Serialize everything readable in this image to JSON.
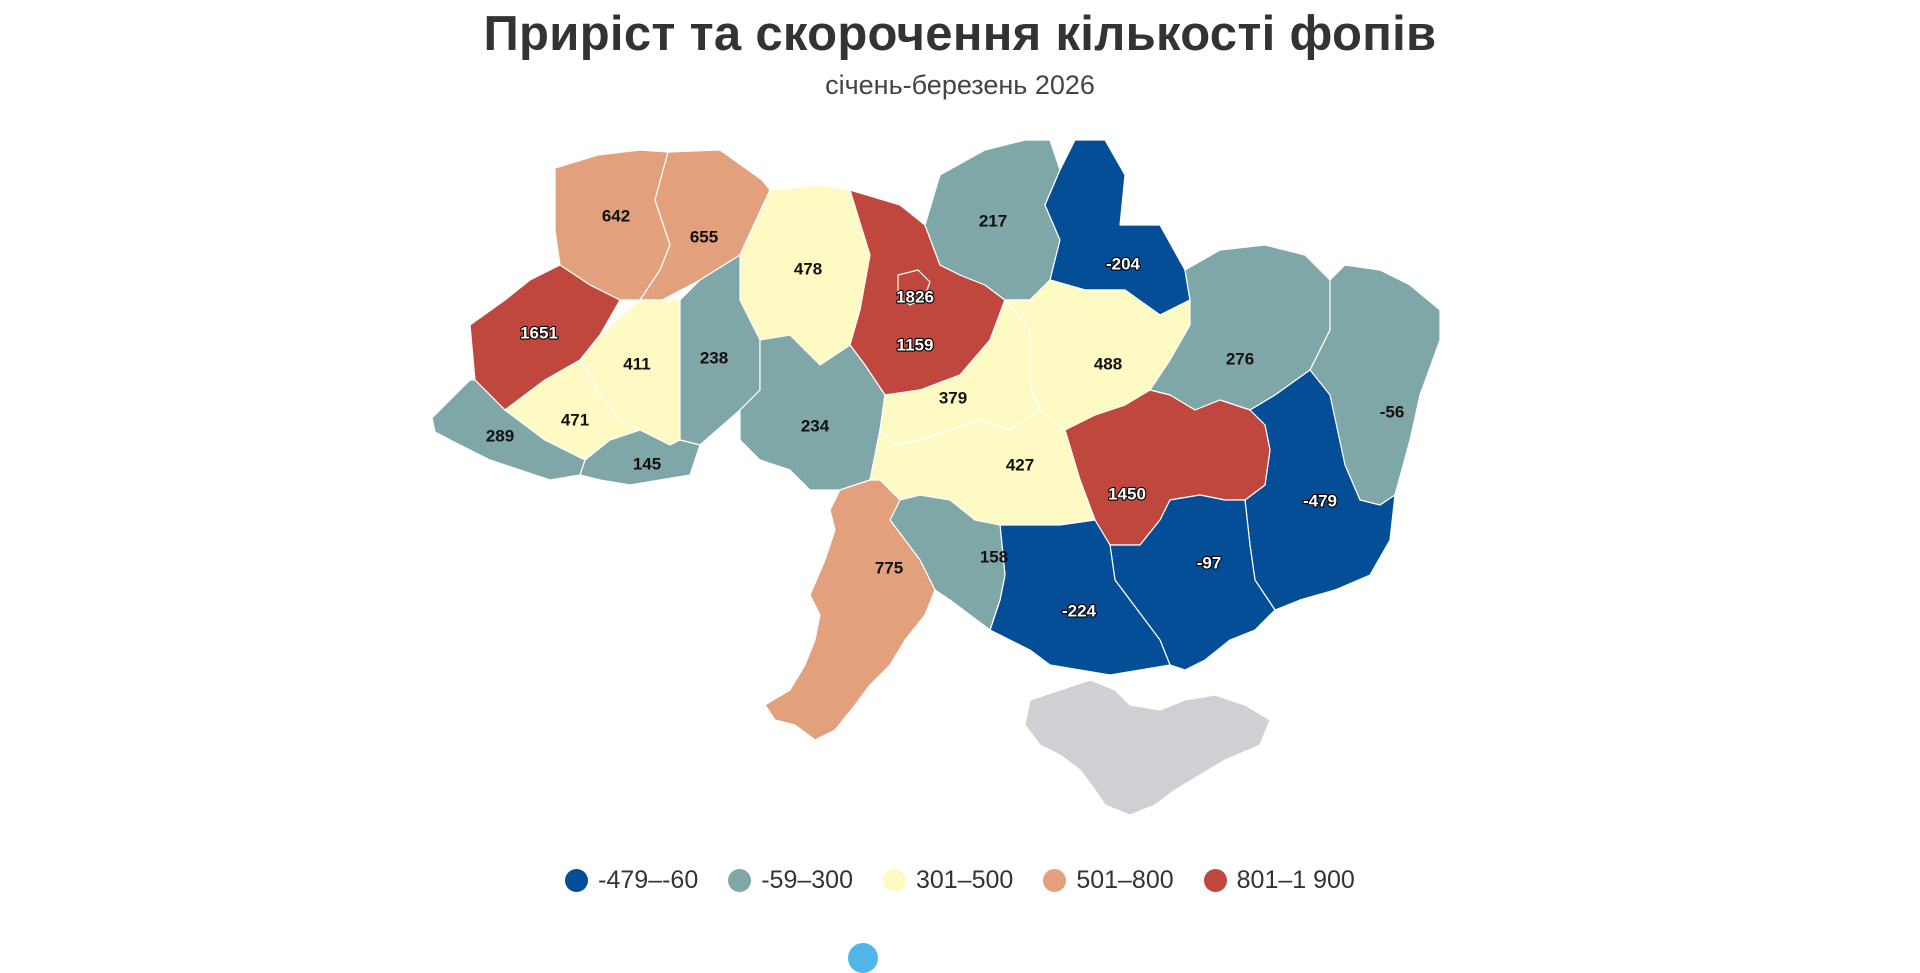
{
  "title": "Приріст та скорочення кількості фопів",
  "subtitle": "січень-березень 2026",
  "colors": {
    "c1": "#034e97",
    "c2": "#7fa7a8",
    "c3": "#fdfbc3",
    "c4": "#e2a07c",
    "c5": "#c0473d",
    "crimea": "#cfcfd4"
  },
  "legend": [
    {
      "label": "-479–-60",
      "color": "#034e97"
    },
    {
      "label": "-59–300",
      "color": "#7fa7a8"
    },
    {
      "label": "301–500",
      "color": "#fdfbc3"
    },
    {
      "label": "501–800",
      "color": "#e2a07c"
    },
    {
      "label": "801–1 900",
      "color": "#c0473d"
    }
  ],
  "values": {
    "volyn": "642",
    "rivne": "655",
    "zhytomyr": "478",
    "kyiv_oblast": "1159",
    "kyiv_city": "1826",
    "chernihiv": "217",
    "sumy": "-204",
    "lviv": "1651",
    "ternopil": "411",
    "khmelnytskyi": "238",
    "vinnytsia": "234",
    "cherkasy": "379",
    "poltava": "488",
    "kharkiv": "276",
    "luhansk": "-56",
    "donetsk": "-479",
    "dnipro": "1450",
    "kirovohrad": "427",
    "zaporizhzhia": "-97",
    "kherson": "-224",
    "mykolaiv": "158",
    "odesa": "775",
    "zakarpattia": "289",
    "ivano_frankivsk": "471",
    "chernivtsi": "145"
  }
}
